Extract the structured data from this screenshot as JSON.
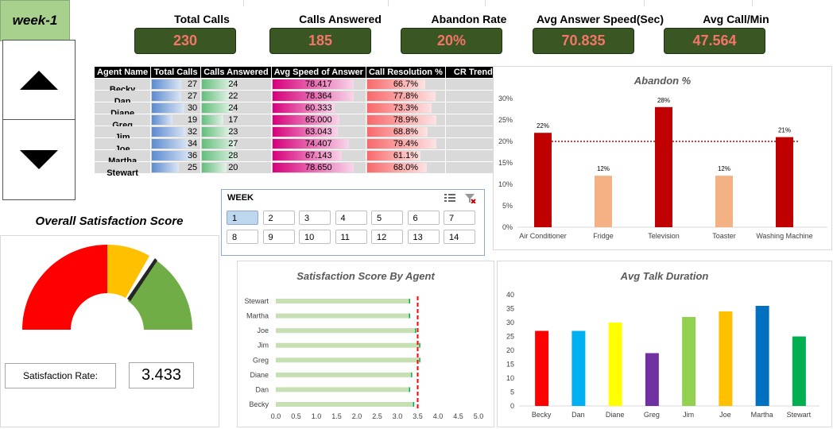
{
  "week_label": "week-1",
  "kpis": [
    {
      "title": "Total Calls",
      "value": "230"
    },
    {
      "title": "Calls Answered",
      "value": "185"
    },
    {
      "title": "Abandon Rate",
      "value": "20%"
    },
    {
      "title": "Avg Answer Speed(Sec)",
      "value": "70.835"
    },
    {
      "title": "Avg Call/Min",
      "value": "47.564"
    }
  ],
  "agent_table": {
    "headers": [
      "Agent Name",
      "Total Calls",
      "Calls Answered",
      "Avg Speed of Answer",
      "Call Resolution %",
      "CR Trend"
    ],
    "rows": [
      {
        "name": "Becky",
        "total": "27",
        "answered": "24",
        "speed": "78.417",
        "resolution": "66.7%"
      },
      {
        "name": "Dan",
        "total": "27",
        "answered": "22",
        "speed": "78.364",
        "resolution": "77.8%"
      },
      {
        "name": "Diane",
        "total": "30",
        "answered": "24",
        "speed": "60.333",
        "resolution": "73.3%"
      },
      {
        "name": "Greg",
        "total": "19",
        "answered": "17",
        "speed": "65.000",
        "resolution": "78.9%"
      },
      {
        "name": "Jim",
        "total": "32",
        "answered": "23",
        "speed": "63.043",
        "resolution": "68.8%"
      },
      {
        "name": "Joe",
        "total": "34",
        "answered": "27",
        "speed": "74.407",
        "resolution": "79.4%"
      },
      {
        "name": "Martha",
        "total": "36",
        "answered": "28",
        "speed": "67.143",
        "resolution": "61.1%"
      },
      {
        "name": "Stewart",
        "total": "25",
        "answered": "20",
        "speed": "78.650",
        "resolution": "68.0%"
      }
    ]
  },
  "slicer": {
    "title": "WEEK",
    "items": [
      "1",
      "2",
      "3",
      "4",
      "5",
      "6",
      "7",
      "8",
      "9",
      "10",
      "11",
      "12",
      "13",
      "14"
    ],
    "selected": "1"
  },
  "satisfaction": {
    "title": "Overall Satisfaction Score",
    "rate_label": "Satisfaction Rate:",
    "rate_value": "3.433",
    "gauge_colors": [
      "#ff0000",
      "#ffc000",
      "#70ad47"
    ]
  },
  "colors": {
    "kpi_bg": "#3a5622",
    "kpi_text": "#f4756a",
    "week_bg": "#a9d18e",
    "abandon_high": "#c00000",
    "abandon_low": "#f4b183"
  },
  "chart_data": [
    {
      "type": "bar",
      "title": "Abandon %",
      "categories": [
        "Air Conditioner",
        "Fridge",
        "Television",
        "Toaster",
        "Washing Machine"
      ],
      "values": [
        22,
        12,
        28,
        12,
        21
      ],
      "data_labels": [
        "22%",
        "12%",
        "28%",
        "12%",
        "21%"
      ],
      "ylim": [
        0,
        30
      ],
      "yticks": [
        "0%",
        "5%",
        "10%",
        "15%",
        "20%",
        "25%",
        "30%"
      ],
      "target_line": 20
    },
    {
      "type": "bar",
      "orientation": "horizontal",
      "title": "Satisfaction Score By Agent",
      "categories": [
        "Becky",
        "Dan",
        "Diane",
        "Greg",
        "Jim",
        "Joe",
        "Martha",
        "Stewart"
      ],
      "values": [
        3.4,
        3.3,
        3.35,
        3.55,
        3.55,
        3.45,
        3.3,
        3.3
      ],
      "xlim": [
        0,
        5
      ],
      "xticks": [
        "0.0",
        "0.5",
        "1.0",
        "1.5",
        "2.0",
        "2.5",
        "3.0",
        "3.5",
        "4.0",
        "4.5",
        "5.0"
      ],
      "target_line": 3.5
    },
    {
      "type": "bar",
      "title": "Avg Talk Duration",
      "categories": [
        "Becky",
        "Dan",
        "Diane",
        "Greg",
        "Jim",
        "Joe",
        "Martha",
        "Stewart"
      ],
      "values": [
        27,
        27,
        30,
        19,
        32,
        34,
        36,
        25
      ],
      "colors": [
        "#ff0000",
        "#00b0f0",
        "#ffff00",
        "#7030a0",
        "#92d050",
        "#ffc000",
        "#0070c0",
        "#00b050"
      ],
      "ylim": [
        0,
        40
      ],
      "yticks": [
        "0",
        "5",
        "10",
        "15",
        "20",
        "25",
        "30",
        "35",
        "40"
      ]
    }
  ]
}
